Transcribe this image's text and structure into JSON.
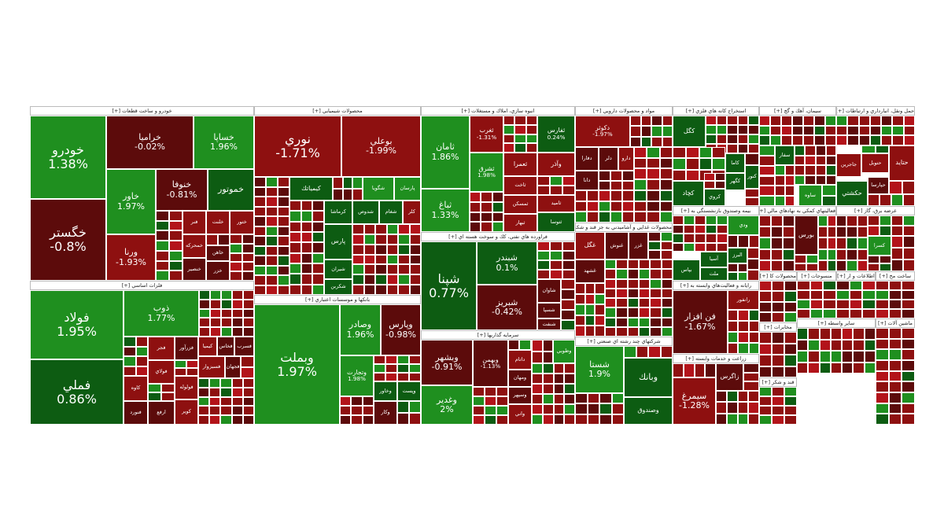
{
  "sectors": [
    {
      "title": "خودرو و ساخت قطعات [+]",
      "tiles": [
        {
          "name": "خودرو",
          "change": "1.38%",
          "color": "#1f8f1f"
        },
        {
          "name": "خگستر",
          "change": "-0.8%",
          "color": "#5c0b0b"
        },
        {
          "name": "خراميا",
          "change": "-0.02%",
          "color": "#5c0b0b"
        },
        {
          "name": "خساپا",
          "change": "1.96%",
          "color": "#1f8f1f"
        },
        {
          "name": "خاور",
          "change": "1.97%",
          "color": "#1f8f1f"
        },
        {
          "name": "خنوفا",
          "change": "-0.81%",
          "color": "#5c0b0b"
        },
        {
          "name": "خموتور",
          "color": "#0d5c12"
        },
        {
          "name": "ورنا",
          "change": "-1.93%",
          "color": "#8e1010"
        },
        {
          "name": "فنر",
          "color": "#8e1010"
        },
        {
          "name": "خلنت",
          "color": "#8e1010"
        },
        {
          "name": "ختور",
          "color": "#8e1010"
        },
        {
          "name": "خمحركه",
          "color": "#8e1010"
        },
        {
          "name": "خاهن",
          "color": "#5c0b0b"
        },
        {
          "name": "خزر",
          "color": "#5c0b0b"
        },
        {
          "name": "خنصير",
          "color": "#5c0b0b"
        }
      ]
    },
    {
      "title": "فلزات اساسي [+]",
      "tiles": [
        {
          "name": "فولاد",
          "change": "1.95%",
          "color": "#1f8f1f"
        },
        {
          "name": "فملي",
          "change": "0.86%",
          "color": "#0d5c12"
        },
        {
          "name": "ذوب",
          "change": "1.77%",
          "color": "#1f8f1f"
        },
        {
          "name": "فجر",
          "color": "#8e1010"
        },
        {
          "name": "فزرآور",
          "color": "#5c0b0b"
        },
        {
          "name": "كيميا",
          "color": "#8e1010"
        },
        {
          "name": "فخاس",
          "color": "#5c0b0b"
        },
        {
          "name": "فسرب",
          "color": "#5c0b0b"
        },
        {
          "name": "فولاي",
          "color": "#8e1010"
        },
        {
          "name": "فسبزوار",
          "color": "#8e1010"
        },
        {
          "name": "فجهان",
          "color": "#5c0b0b"
        },
        {
          "name": "فولوله",
          "color": "#8e1010"
        },
        {
          "name": "كاوه",
          "color": "#8e1010"
        },
        {
          "name": "فنورد",
          "color": "#5c0b0b"
        },
        {
          "name": "ارفع",
          "color": "#5c0b0b"
        },
        {
          "name": "كوير",
          "color": "#8e1010"
        }
      ]
    },
    {
      "title": "محصولات شيميايي [+]",
      "tiles": [
        {
          "name": "نوري",
          "change": "-1.71%",
          "color": "#8e1010"
        },
        {
          "name": "بوعلي",
          "change": "-1.99%",
          "color": "#8e1010"
        },
        {
          "name": "كيمياتك",
          "color": "#0d5c12"
        },
        {
          "name": "شگويا",
          "color": "#1f8f1f"
        },
        {
          "name": "پارسان",
          "color": "#1f8f1f"
        },
        {
          "name": "كرماشا",
          "color": "#0d5c12"
        },
        {
          "name": "شدوص",
          "color": "#0d5c12"
        },
        {
          "name": "شغام",
          "color": "#0d5c12"
        },
        {
          "name": "كلر",
          "color": "#8e1010"
        },
        {
          "name": "پارس",
          "color": "#0d5c12"
        },
        {
          "name": "شيران",
          "color": "#0d5c12"
        },
        {
          "name": "شكربن",
          "color": "#0d5c12"
        }
      ]
    },
    {
      "title": "بانكها و موسسات اعتباري [+]",
      "tiles": [
        {
          "name": "وبملت",
          "change": "1.97%",
          "color": "#1f8f1f"
        },
        {
          "name": "وصادر",
          "change": "1.96%",
          "color": "#1f8f1f"
        },
        {
          "name": "وپارس",
          "change": "-0.98%",
          "color": "#5c0b0b"
        },
        {
          "name": "وتجارت",
          "change": "1.98%",
          "color": "#1f8f1f"
        },
        {
          "name": "وخاور",
          "color": "#0d5c12"
        },
        {
          "name": "وپست",
          "color": "#0d5c12"
        },
        {
          "name": "وكار",
          "color": "#5c0b0b"
        }
      ]
    },
    {
      "title": "انبوه سازي، املاك و مستغلات [+]",
      "tiles": [
        {
          "name": "ثامان",
          "change": "1.86%",
          "color": "#1f8f1f"
        },
        {
          "name": "ثباغ",
          "change": "1.33%",
          "color": "#1f8f1f"
        },
        {
          "name": "ثغرب",
          "change": "-1.31%",
          "color": "#8e1010"
        },
        {
          "name": "ثفارس",
          "change": "0.24%",
          "color": "#0d5c12"
        },
        {
          "name": "ثعمرا",
          "color": "#8e1010"
        },
        {
          "name": "وآذر",
          "color": "#8e1010"
        },
        {
          "name": "ثشرق",
          "change": "1.98%",
          "color": "#1f8f1f"
        },
        {
          "name": "ثاخت",
          "color": "#8e1010"
        },
        {
          "name": "ثمسكن",
          "color": "#8e1010"
        },
        {
          "name": "ثاميد",
          "color": "#8e1010"
        },
        {
          "name": "ثتوسا",
          "color": "#0d5c12"
        },
        {
          "name": "ثبهار",
          "color": "#8e1010"
        }
      ]
    },
    {
      "title": "فراورده هاي نفتي، كك و سوخت هسته اي [+]",
      "tiles": [
        {
          "name": "شپنا",
          "change": "0.77%",
          "color": "#0d5c12"
        },
        {
          "name": "شبندر",
          "change": "0.1%",
          "color": "#0d5c12"
        },
        {
          "name": "شبريز",
          "change": "-0.42%",
          "color": "#5c0b0b"
        },
        {
          "name": "شاوان",
          "color": "#5c0b0b"
        },
        {
          "name": "شسپا",
          "color": "#5c0b0b"
        },
        {
          "name": "شنفت",
          "color": "#5c0b0b"
        }
      ]
    },
    {
      "title": "سرمايه گذاريها [+]",
      "tiles": [
        {
          "name": "وبشهر",
          "change": "-0.91%",
          "color": "#5c0b0b"
        },
        {
          "name": "وغدير",
          "change": "2%",
          "color": "#1f8f1f"
        },
        {
          "name": "وبهمن",
          "change": "-1.13%",
          "color": "#5c0b0b"
        },
        {
          "name": "داتام",
          "color": "#8e1010"
        },
        {
          "name": "ومهان",
          "color": "#5c0b0b"
        },
        {
          "name": "وسپهر",
          "color": "#5c0b0b"
        },
        {
          "name": "واني",
          "color": "#8e1010"
        },
        {
          "name": "وطوبي",
          "color": "#1f8f1f"
        }
      ]
    },
    {
      "title": "مواد و محصولات دارويي [+]",
      "tiles": [
        {
          "name": "دكوثر",
          "change": "-1.97%",
          "color": "#8e1010"
        },
        {
          "name": "دفارا",
          "color": "#5c0b0b"
        },
        {
          "name": "دلر",
          "color": "#5c0b0b"
        },
        {
          "name": "دارو",
          "color": "#8e1010"
        },
        {
          "name": "دانا",
          "color": "#5c0b0b"
        }
      ]
    },
    {
      "title": "محصولات غذايي و آشاميدني به جز قند و شكر [+]",
      "tiles": [
        {
          "name": "غگل",
          "color": "#8e1010"
        },
        {
          "name": "غنوش",
          "color": "#5c0b0b"
        },
        {
          "name": "غزر",
          "color": "#5c0b0b"
        },
        {
          "name": "غشهد",
          "color": "#5c0b0b"
        }
      ]
    },
    {
      "title": "شركتهاي چند رشته اي صنعتي [+]",
      "tiles": [
        {
          "name": "شستا",
          "change": "1.9%",
          "color": "#1f8f1f"
        },
        {
          "name": "وبانك",
          "color": "#0d5c12"
        },
        {
          "name": "وصندوق",
          "color": "#0d5c12"
        }
      ]
    },
    {
      "title": "استخراج كانه هاي فلزي [+]",
      "tiles": [
        {
          "name": "كگل",
          "color": "#0d5c12"
        },
        {
          "name": "كگهر",
          "color": "#0d5c12"
        },
        {
          "name": "كنور",
          "color": "#0d5c12"
        },
        {
          "name": "كاما",
          "color": "#0d5c12"
        },
        {
          "name": "كچاد",
          "color": "#0d5c12"
        },
        {
          "name": "كروي",
          "color": "#0d5c12"
        }
      ]
    },
    {
      "title": "بيمه وصندوق بازنشستگي به [+]",
      "tiles": [
        {
          "name": "ودي",
          "color": "#1f8f1f"
        },
        {
          "name": "البرز",
          "color": "#0d5c12"
        },
        {
          "name": "آسيا",
          "color": "#0d5c12"
        },
        {
          "name": "ملت",
          "color": "#0d5c12"
        },
        {
          "name": "بپاس",
          "color": "#0d5c12"
        }
      ]
    },
    {
      "title": "رايانه و فعاليت‌هاي وابسته به [+]",
      "tiles": [
        {
          "name": "فن افزار",
          "change": "-1.67%",
          "color": "#5c0b0b"
        },
        {
          "name": "رانفور",
          "color": "#8e1010"
        }
      ]
    },
    {
      "title": "زراعت و خدمات وابسته [+]",
      "tiles": [
        {
          "name": "سيمرغ",
          "change": "-1.28%",
          "color": "#8e1010"
        },
        {
          "name": "زاگرس",
          "color": "#5c0b0b"
        }
      ]
    },
    {
      "title": "سيمان، آهك و گچ [+]",
      "tiles": [
        {
          "name": "سفار",
          "color": "#0d5c12"
        },
        {
          "name": "ساوه",
          "color": "#1f8f1f"
        }
      ]
    },
    {
      "title": "فعاليتهاي كمكي به نهادهاي مالي [+]",
      "tiles": [
        {
          "name": "بورس",
          "color": "#5c0b0b"
        }
      ]
    },
    {
      "title": "محصولات كا [+]",
      "tiles": []
    },
    {
      "title": "منسوجات [+]",
      "tiles": []
    },
    {
      "title": "مخابرات [+]",
      "tiles": []
    },
    {
      "title": "قند و شكر [+]",
      "tiles": []
    },
    {
      "title": "حمل ونقل، انبارداري و ارتباطات [+]",
      "tiles": [
        {
          "name": "حتايد",
          "color": "#8e1010"
        },
        {
          "name": "حتوبل",
          "color": "#8e1010"
        },
        {
          "name": "جاجرين",
          "color": "#8e1010"
        },
        {
          "name": "حكشتي",
          "color": "#0d5c12"
        },
        {
          "name": "حپارسا",
          "color": "#5c0b0b"
        }
      ]
    },
    {
      "title": "عرضه برق، گاز [+]",
      "tiles": [
        {
          "name": "كسرا",
          "color": "#1f8f1f"
        }
      ]
    },
    {
      "title": "اطلاعات و ار [+]",
      "tiles": []
    },
    {
      "title": "ساخت مح [+]",
      "tiles": []
    },
    {
      "title": "ساير واسطه [+]",
      "tiles": []
    },
    {
      "title": "ماشين آلات [+]",
      "tiles": []
    }
  ]
}
